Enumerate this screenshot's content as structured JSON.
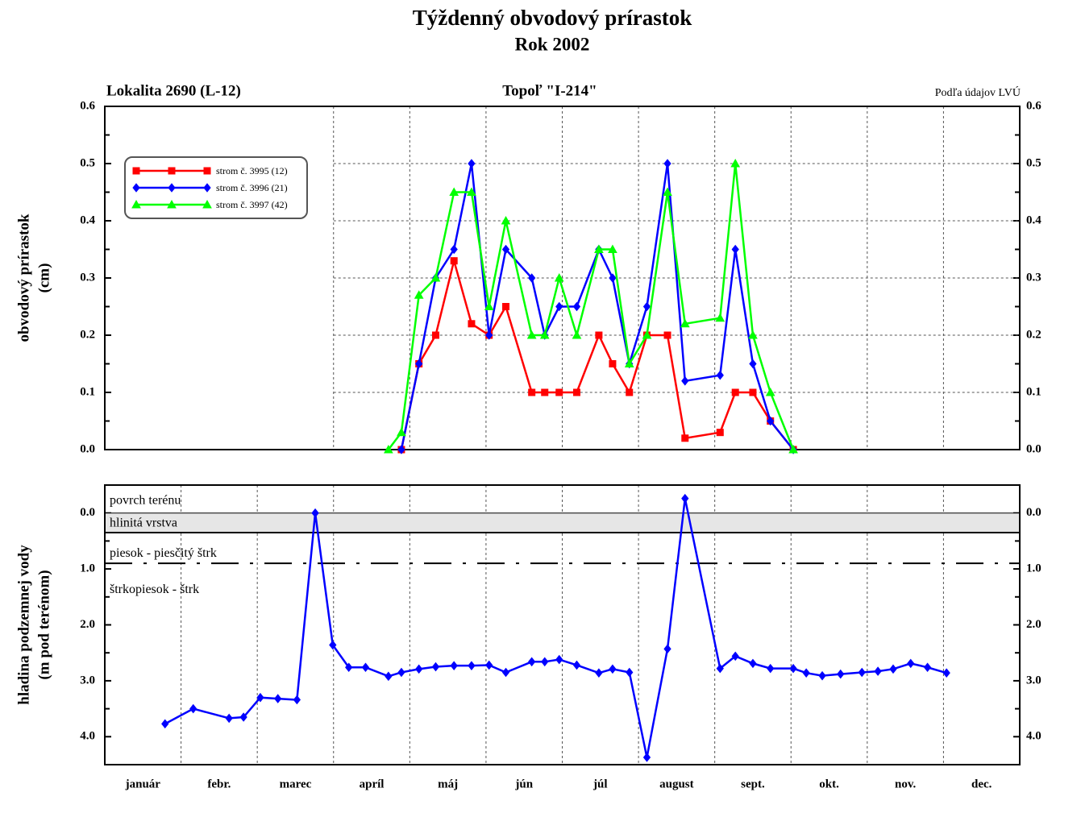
{
  "chart_data": [
    {
      "type": "line",
      "title": "Týždenný obvodový prírastok",
      "subtitle": "Rok 2002",
      "location": "Lokalita 2690 (L-12)",
      "tree": "Topoľ \"I-214\"",
      "source": "Podľa údajov LVÚ",
      "ylabel": [
        "obvodový prírastok",
        "(cm)"
      ],
      "xlim": [
        0,
        12
      ],
      "xticks": [
        3,
        4,
        5,
        6,
        7,
        8,
        9,
        10,
        11
      ],
      "ylim": [
        0,
        0.6
      ],
      "yticks": [
        {
          "value": 0,
          "label": "0.0"
        },
        0.1,
        0.2,
        0.3,
        0.4,
        0.5,
        0.6
      ],
      "grid": true,
      "legend": "upper left",
      "series": [
        {
          "name": "strom č. 3995 (12)",
          "color": "#ff0000",
          "marker": "square",
          "x": [
            3.89,
            4.12,
            4.34,
            4.58,
            4.81,
            5.04,
            5.26,
            5.6,
            5.77,
            5.96,
            6.19,
            6.48,
            6.66,
            6.88,
            7.11,
            7.38,
            7.61,
            8.07,
            8.27,
            8.5,
            8.73,
            9.03
          ],
          "values": [
            0,
            0.15,
            0.2,
            0.33,
            0.22,
            0.2,
            0.25,
            0.1,
            0.1,
            0.1,
            0.1,
            0.2,
            0.15,
            0.1,
            0.2,
            0.2,
            0.02,
            0.03,
            0.1,
            0.1,
            0.05,
            0
          ]
        },
        {
          "name": "strom č. 3996 (21)",
          "color": "#0000ff",
          "marker": "diamond",
          "x": [
            3.89,
            4.12,
            4.34,
            4.58,
            4.81,
            5.04,
            5.26,
            5.6,
            5.77,
            5.96,
            6.19,
            6.48,
            6.66,
            6.88,
            7.11,
            7.38,
            7.61,
            8.07,
            8.27,
            8.5,
            8.73,
            9.03
          ],
          "values": [
            0,
            0.15,
            0.3,
            0.35,
            0.5,
            0.2,
            0.35,
            0.3,
            0.2,
            0.25,
            0.25,
            0.35,
            0.3,
            0.15,
            0.25,
            0.5,
            0.12,
            0.13,
            0.35,
            0.15,
            0.05,
            0
          ]
        },
        {
          "name": "strom č. 3997 (42)",
          "color": "#00ff00",
          "marker": "triangle",
          "x": [
            3.72,
            3.89,
            4.12,
            4.34,
            4.58,
            4.81,
            5.04,
            5.26,
            5.6,
            5.77,
            5.96,
            6.19,
            6.48,
            6.66,
            6.88,
            7.11,
            7.38,
            7.61,
            8.07,
            8.27,
            8.5,
            8.73,
            9.03
          ],
          "values": [
            0,
            0.03,
            0.27,
            0.3,
            0.45,
            0.45,
            0.25,
            0.4,
            0.2,
            0.2,
            0.3,
            0.2,
            0.35,
            0.35,
            0.15,
            0.2,
            0.45,
            0.22,
            0.23,
            0.5,
            0.2,
            0.1,
            0
          ]
        }
      ]
    },
    {
      "type": "line",
      "ylabel": [
        "hladina podzemnej vody",
        "(m pod terénom)"
      ],
      "categories": [
        "január",
        "febr.",
        "marec",
        "apríl",
        "máj",
        "jún",
        "júl",
        "august",
        "sept.",
        "okt.",
        "nov.",
        "dec."
      ],
      "xlim": [
        0,
        12
      ],
      "xticks": [
        1,
        2,
        3,
        4,
        5,
        6,
        7,
        8,
        9,
        10,
        11
      ],
      "ylim": [
        -0.5,
        4.5
      ],
      "invert_y": true,
      "yticks": [
        {
          "value": 0,
          "label": "0.0"
        },
        {
          "value": 1,
          "label": "1.0"
        },
        {
          "value": 2,
          "label": "2.0"
        },
        {
          "value": 3,
          "label": "3.0"
        },
        {
          "value": 4,
          "label": "4.0"
        }
      ],
      "layers": [
        {
          "name": "povrch terénu",
          "depth": 0
        },
        {
          "name": "hlinitá vrstva",
          "depth": 0.35
        },
        {
          "name": "piesok - piesčitý štrk",
          "depth": 0.9
        },
        {
          "name": "štrkopiesok - štrk"
        }
      ],
      "series": [
        {
          "color": "#0000ff",
          "marker": "diamond",
          "x": [
            0.79,
            1.16,
            1.63,
            1.82,
            2.04,
            2.27,
            2.52,
            2.76,
            2.99,
            3.2,
            3.42,
            3.72,
            3.89,
            4.12,
            4.34,
            4.58,
            4.81,
            5.04,
            5.26,
            5.6,
            5.77,
            5.96,
            6.19,
            6.48,
            6.66,
            6.88,
            7.11,
            7.38,
            7.61,
            8.07,
            8.27,
            8.5,
            8.73,
            9.03,
            9.2,
            9.41,
            9.65,
            9.93,
            10.14,
            10.34,
            10.57,
            10.79,
            11.04
          ],
          "values": [
            3.77,
            3.5,
            3.67,
            3.65,
            3.3,
            3.32,
            3.34,
            0,
            2.36,
            2.76,
            2.76,
            2.92,
            2.85,
            2.79,
            2.75,
            2.73,
            2.73,
            2.72,
            2.85,
            2.66,
            2.66,
            2.62,
            2.72,
            2.86,
            2.79,
            2.85,
            4.37,
            2.43,
            -0.26,
            2.78,
            2.56,
            2.69,
            2.78,
            2.78,
            2.86,
            2.91,
            2.88,
            2.85,
            2.83,
            2.79,
            2.69,
            2.76,
            2.86
          ]
        }
      ]
    }
  ]
}
